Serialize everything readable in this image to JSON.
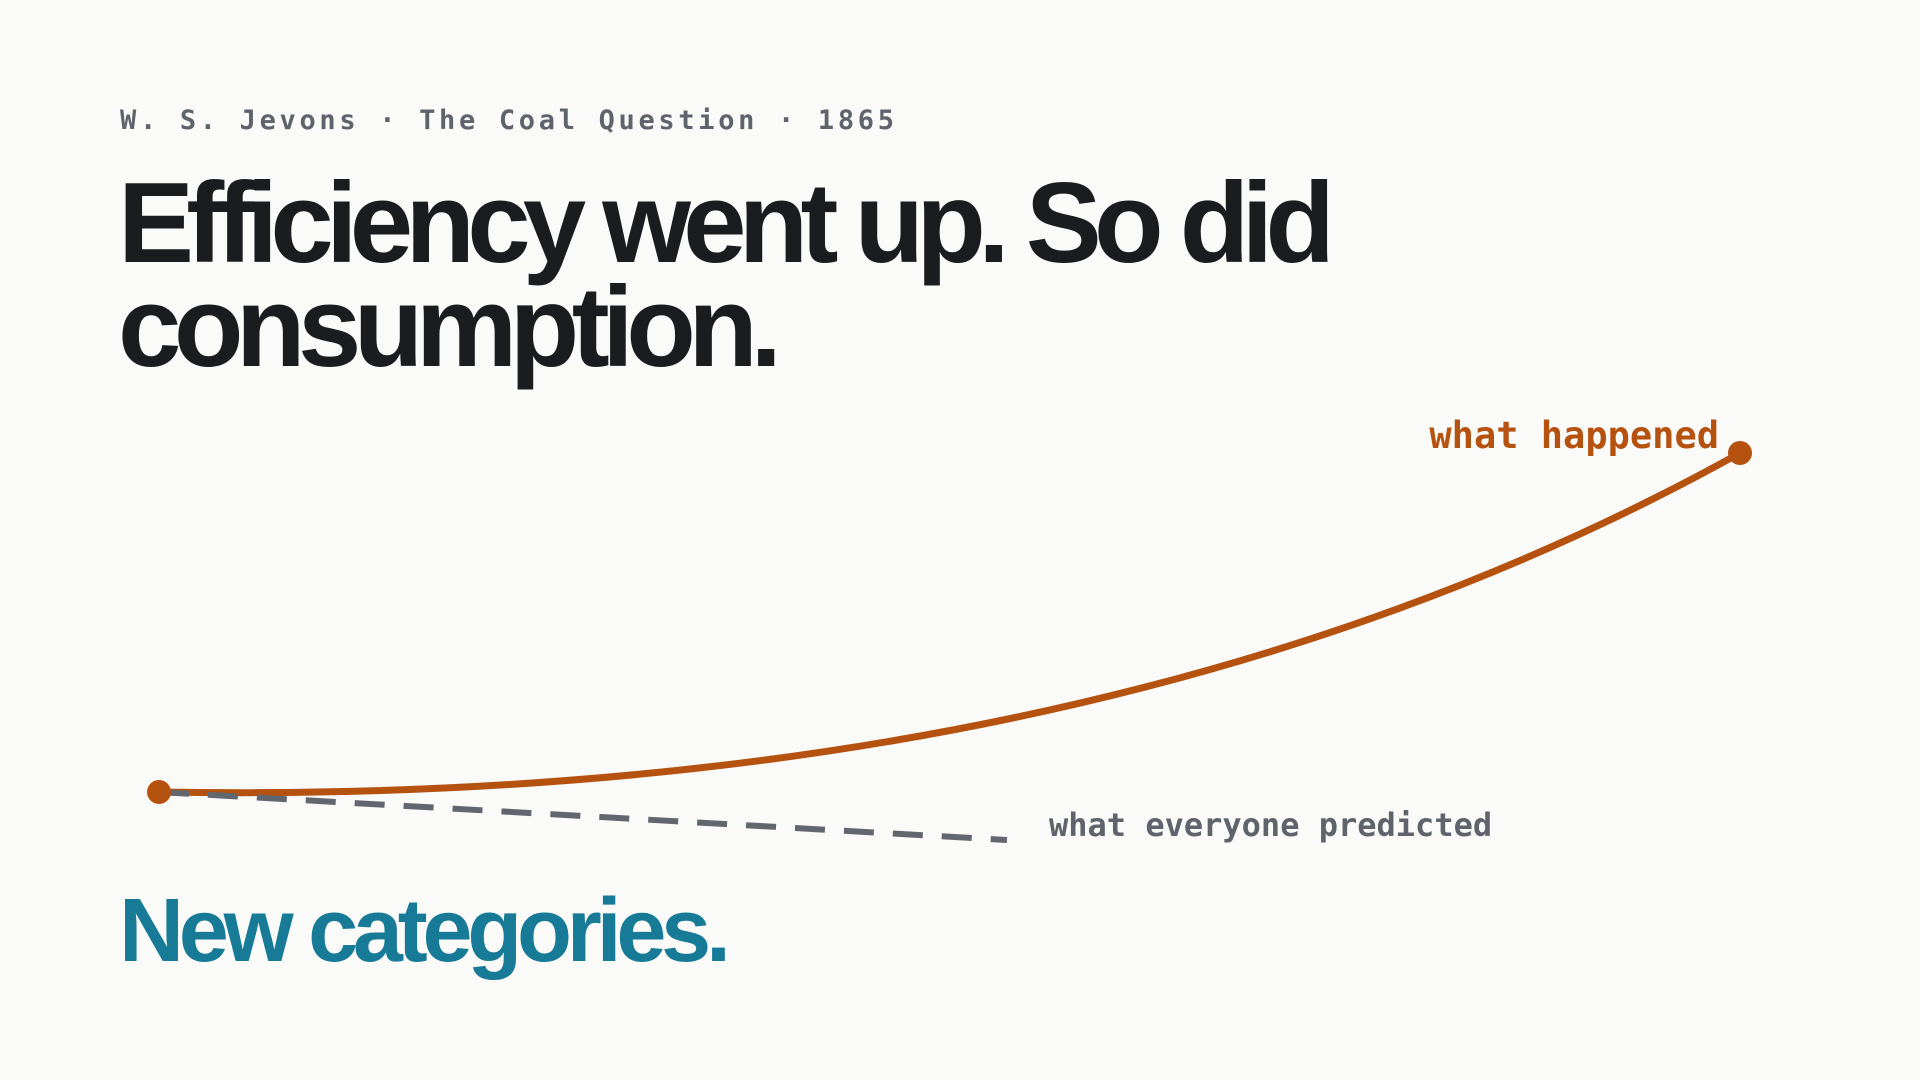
{
  "eyebrow": "W. S. Jevons · The Coal Question · 1865",
  "title": [
    "Efficiency went up. So did",
    "consumption."
  ],
  "labels": {
    "actual": "what happened",
    "predicted": "what everyone predicted"
  },
  "subtitle": "New categories."
}
